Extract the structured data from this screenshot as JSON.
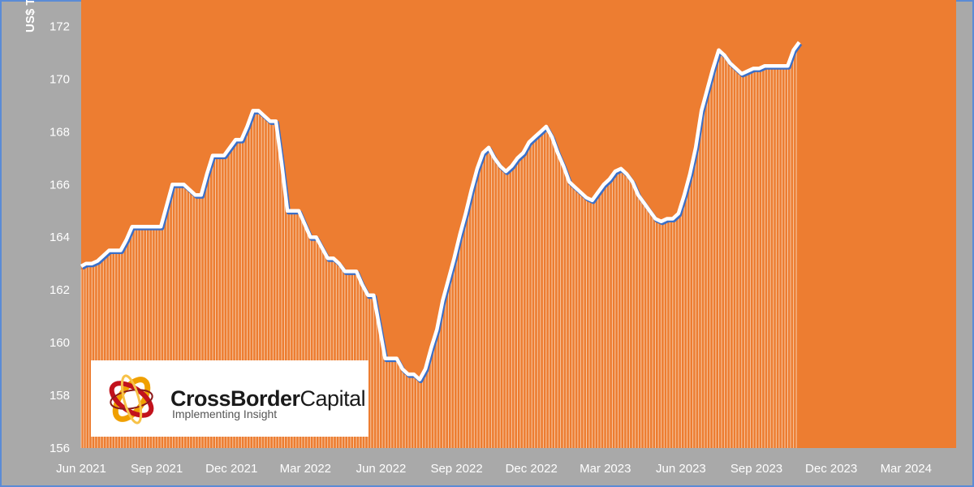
{
  "colors": {
    "background": "#a9a9a9",
    "plot_fill": "#ED7D31",
    "series_line": "#ffffff",
    "series_shadow": "#3a6fc8",
    "frame_border": "#5b8bd6"
  },
  "logo": {
    "name_part1": "CrossBorder",
    "name_part2": "Capital",
    "tagline": "Implementing Insight",
    "icon": "crossborder-orbit-logo"
  },
  "chart_data": {
    "type": "area",
    "title": "",
    "xlabel": "",
    "ylabel": "US$ T",
    "ylim": [
      156,
      173
    ],
    "yticks": [
      156,
      158,
      160,
      162,
      164,
      166,
      168,
      170,
      172
    ],
    "x_range": [
      "2021-06-01",
      "2024-05-01"
    ],
    "x_ticks": [
      {
        "label": "Jun 2021",
        "date": "2021-06-01"
      },
      {
        "label": "Sep 2021",
        "date": "2021-09-01"
      },
      {
        "label": "Dec 2021",
        "date": "2021-12-01"
      },
      {
        "label": "Mar 2022",
        "date": "2022-03-01"
      },
      {
        "label": "Jun 2022",
        "date": "2022-06-01"
      },
      {
        "label": "Sep 2022",
        "date": "2022-09-01"
      },
      {
        "label": "Dec 2022",
        "date": "2022-12-01"
      },
      {
        "label": "Mar 2023",
        "date": "2023-03-01"
      },
      {
        "label": "Jun 2023",
        "date": "2023-06-01"
      },
      {
        "label": "Sep 2023",
        "date": "2023-09-01"
      },
      {
        "label": "Dec 2023",
        "date": "2023-12-01"
      },
      {
        "label": "Mar 2024",
        "date": "2024-03-01"
      }
    ],
    "series": [
      {
        "points": [
          [
            "2021-06-01",
            162.9
          ],
          [
            "2021-06-07",
            163.0
          ],
          [
            "2021-06-14",
            163.0
          ],
          [
            "2021-06-21",
            163.1
          ],
          [
            "2021-06-28",
            163.3
          ],
          [
            "2021-07-05",
            163.5
          ],
          [
            "2021-07-12",
            163.5
          ],
          [
            "2021-07-19",
            163.5
          ],
          [
            "2021-07-26",
            163.9
          ],
          [
            "2021-08-02",
            164.4
          ],
          [
            "2021-08-09",
            164.4
          ],
          [
            "2021-08-16",
            164.4
          ],
          [
            "2021-08-23",
            164.4
          ],
          [
            "2021-08-30",
            164.4
          ],
          [
            "2021-09-06",
            164.4
          ],
          [
            "2021-09-13",
            165.2
          ],
          [
            "2021-09-20",
            166.0
          ],
          [
            "2021-09-27",
            166.0
          ],
          [
            "2021-10-04",
            166.0
          ],
          [
            "2021-10-11",
            165.8
          ],
          [
            "2021-10-18",
            165.6
          ],
          [
            "2021-10-25",
            165.6
          ],
          [
            "2021-11-01",
            166.4
          ],
          [
            "2021-11-08",
            167.1
          ],
          [
            "2021-11-15",
            167.1
          ],
          [
            "2021-11-22",
            167.1
          ],
          [
            "2021-11-29",
            167.4
          ],
          [
            "2021-12-06",
            167.7
          ],
          [
            "2021-12-13",
            167.7
          ],
          [
            "2021-12-20",
            168.2
          ],
          [
            "2021-12-27",
            168.8
          ],
          [
            "2022-01-03",
            168.8
          ],
          [
            "2022-01-10",
            168.6
          ],
          [
            "2022-01-17",
            168.4
          ],
          [
            "2022-01-24",
            168.4
          ],
          [
            "2022-01-31",
            166.8
          ],
          [
            "2022-02-07",
            165.0
          ],
          [
            "2022-02-14",
            165.0
          ],
          [
            "2022-02-21",
            165.0
          ],
          [
            "2022-02-28",
            164.5
          ],
          [
            "2022-03-07",
            164.0
          ],
          [
            "2022-03-14",
            164.0
          ],
          [
            "2022-03-21",
            163.6
          ],
          [
            "2022-03-28",
            163.2
          ],
          [
            "2022-04-04",
            163.2
          ],
          [
            "2022-04-11",
            163.0
          ],
          [
            "2022-04-18",
            162.7
          ],
          [
            "2022-04-25",
            162.7
          ],
          [
            "2022-05-02",
            162.7
          ],
          [
            "2022-05-09",
            162.2
          ],
          [
            "2022-05-16",
            161.8
          ],
          [
            "2022-05-23",
            161.8
          ],
          [
            "2022-05-30",
            160.6
          ],
          [
            "2022-06-06",
            159.4
          ],
          [
            "2022-06-13",
            159.4
          ],
          [
            "2022-06-20",
            159.4
          ],
          [
            "2022-06-27",
            159.0
          ],
          [
            "2022-07-04",
            158.8
          ],
          [
            "2022-07-11",
            158.8
          ],
          [
            "2022-07-18",
            158.6
          ],
          [
            "2022-07-25",
            159.0
          ],
          [
            "2022-08-01",
            159.8
          ],
          [
            "2022-08-08",
            160.5
          ],
          [
            "2022-08-15",
            161.6
          ],
          [
            "2022-08-22",
            162.4
          ],
          [
            "2022-08-29",
            163.2
          ],
          [
            "2022-09-05",
            164.1
          ],
          [
            "2022-09-12",
            164.9
          ],
          [
            "2022-09-19",
            165.8
          ],
          [
            "2022-09-26",
            166.6
          ],
          [
            "2022-10-03",
            167.2
          ],
          [
            "2022-10-10",
            167.4
          ],
          [
            "2022-10-17",
            167.0
          ],
          [
            "2022-10-24",
            166.7
          ],
          [
            "2022-10-31",
            166.5
          ],
          [
            "2022-11-07",
            166.7
          ],
          [
            "2022-11-14",
            167.0
          ],
          [
            "2022-11-21",
            167.2
          ],
          [
            "2022-11-28",
            167.6
          ],
          [
            "2022-12-05",
            167.8
          ],
          [
            "2022-12-12",
            168.0
          ],
          [
            "2022-12-19",
            168.2
          ],
          [
            "2022-12-26",
            167.8
          ],
          [
            "2023-01-02",
            167.2
          ],
          [
            "2023-01-09",
            166.7
          ],
          [
            "2023-01-16",
            166.1
          ],
          [
            "2023-01-23",
            165.9
          ],
          [
            "2023-01-30",
            165.7
          ],
          [
            "2023-02-06",
            165.5
          ],
          [
            "2023-02-13",
            165.4
          ],
          [
            "2023-02-20",
            165.7
          ],
          [
            "2023-02-27",
            166.0
          ],
          [
            "2023-03-06",
            166.2
          ],
          [
            "2023-03-13",
            166.5
          ],
          [
            "2023-03-20",
            166.6
          ],
          [
            "2023-03-27",
            166.4
          ],
          [
            "2023-04-03",
            166.1
          ],
          [
            "2023-04-10",
            165.6
          ],
          [
            "2023-04-17",
            165.3
          ],
          [
            "2023-04-24",
            165.0
          ],
          [
            "2023-05-01",
            164.7
          ],
          [
            "2023-05-08",
            164.6
          ],
          [
            "2023-05-15",
            164.7
          ],
          [
            "2023-05-22",
            164.7
          ],
          [
            "2023-05-29",
            164.9
          ],
          [
            "2023-06-05",
            165.6
          ],
          [
            "2023-06-12",
            166.4
          ],
          [
            "2023-06-19",
            167.4
          ],
          [
            "2023-06-26",
            168.8
          ],
          [
            "2023-07-03",
            169.6
          ],
          [
            "2023-07-10",
            170.4
          ],
          [
            "2023-07-17",
            171.1
          ],
          [
            "2023-07-24",
            170.9
          ],
          [
            "2023-07-31",
            170.6
          ],
          [
            "2023-08-07",
            170.4
          ],
          [
            "2023-08-14",
            170.2
          ],
          [
            "2023-08-21",
            170.3
          ],
          [
            "2023-08-28",
            170.4
          ],
          [
            "2023-09-04",
            170.4
          ],
          [
            "2023-09-11",
            170.5
          ],
          [
            "2023-09-18",
            170.5
          ],
          [
            "2023-09-25",
            170.5
          ],
          [
            "2023-10-02",
            170.5
          ],
          [
            "2023-10-09",
            170.5
          ],
          [
            "2023-10-16",
            171.1
          ],
          [
            "2023-10-23",
            171.4
          ]
        ]
      }
    ]
  }
}
